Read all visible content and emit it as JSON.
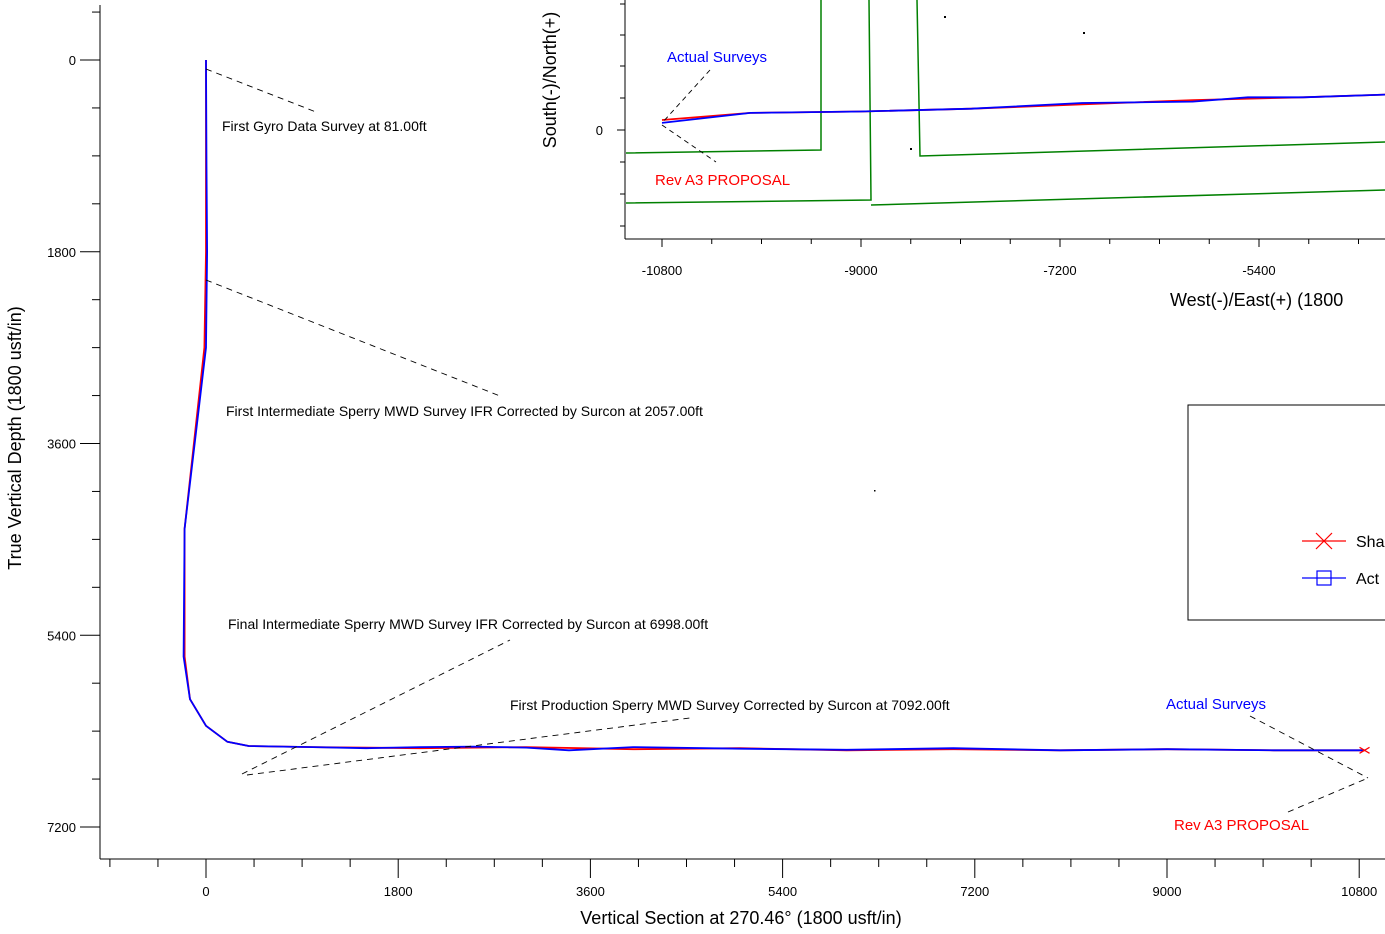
{
  "chart_data": [
    {
      "type": "line",
      "title": "",
      "xlabel": "Vertical Section at 270.46° (1800 usft/in)",
      "ylabel": "True Vertical Depth (1800 usft/in)",
      "xlim": [
        -900,
        11000
      ],
      "ylim": [
        7500,
        -500
      ],
      "y_inverted": true,
      "x_ticks": [
        "0",
        "1800",
        "3600",
        "5400",
        "7200",
        "9000",
        "10800"
      ],
      "y_ticks": [
        "0",
        "1800",
        "3600",
        "5400",
        "7200"
      ],
      "series": [
        {
          "name": "Rev A3 PROPOSAL",
          "color": "#ff0000",
          "x": [
            0,
            0,
            0,
            -15,
            -200,
            -200,
            -150,
            0,
            200,
            400,
            1000,
            2000,
            3000,
            4000,
            5000,
            6000,
            7000,
            8000,
            9000,
            10000,
            10850
          ],
          "y": [
            0,
            1000,
            1800,
            2700,
            4400,
            5600,
            6000,
            6250,
            6400,
            6440,
            6450,
            6460,
            6450,
            6470,
            6460,
            6480,
            6470,
            6480,
            6470,
            6480,
            6480
          ]
        },
        {
          "name": "Actual Surveys",
          "color": "#0000ff",
          "x": [
            0,
            5,
            10,
            0,
            -200,
            -210,
            -150,
            0,
            200,
            400,
            1000,
            1500,
            2000,
            2500,
            3000,
            3400,
            4000,
            5000,
            6000,
            7000,
            8000,
            9000,
            10000,
            10850
          ],
          "y": [
            0,
            1000,
            1800,
            2700,
            4400,
            5600,
            6000,
            6250,
            6400,
            6440,
            6450,
            6460,
            6450,
            6445,
            6455,
            6480,
            6450,
            6465,
            6475,
            6460,
            6480,
            6470,
            6480,
            6480
          ]
        }
      ],
      "annotations": [
        "First Gyro Data Survey at 81.00ft",
        "First Intermediate Sperry MWD Survey IFR Corrected by Surcon at 2057.00ft",
        "Final Intermediate Sperry MWD Survey IFR Corrected by Surcon at 6998.00ft",
        "First Production Sperry MWD Survey Corrected by Surcon at 7092.00ft",
        "Actual Surveys",
        "Rev A3 PROPOSAL"
      ]
    },
    {
      "type": "line",
      "title": "",
      "xlabel": "West(-)/East(+) (1800",
      "ylabel": "South(-)/North(+)",
      "xlim": [
        -11200,
        -4200
      ],
      "ylim": [
        -1000,
        1300
      ],
      "x_ticks": [
        "-10800",
        "-9000",
        "-7200",
        "-5400"
      ],
      "y_ticks": [
        "0"
      ],
      "series": [
        {
          "name": "Rev A3 PROPOSAL",
          "color": "#ff0000",
          "x": [
            -10800,
            -10000,
            -9000,
            -8000,
            -7000,
            -6000,
            -5000,
            -4200
          ],
          "y": [
            70,
            120,
            130,
            150,
            180,
            210,
            230,
            250
          ]
        },
        {
          "name": "Actual Surveys",
          "color": "#0000ff",
          "x": [
            -10800,
            -10000,
            -9000,
            -8000,
            -7000,
            -6000,
            -5500,
            -5000,
            -4200
          ],
          "y": [
            50,
            120,
            130,
            150,
            190,
            200,
            230,
            230,
            250
          ]
        }
      ],
      "annotations": [
        "Actual Surveys",
        "Rev A3 PROPOSAL"
      ]
    }
  ],
  "legend": {
    "items": [
      {
        "label": "Sha",
        "color": "#ff0000",
        "marker": "x"
      },
      {
        "label": "Act",
        "color": "#0000ff",
        "marker": "square"
      }
    ]
  }
}
